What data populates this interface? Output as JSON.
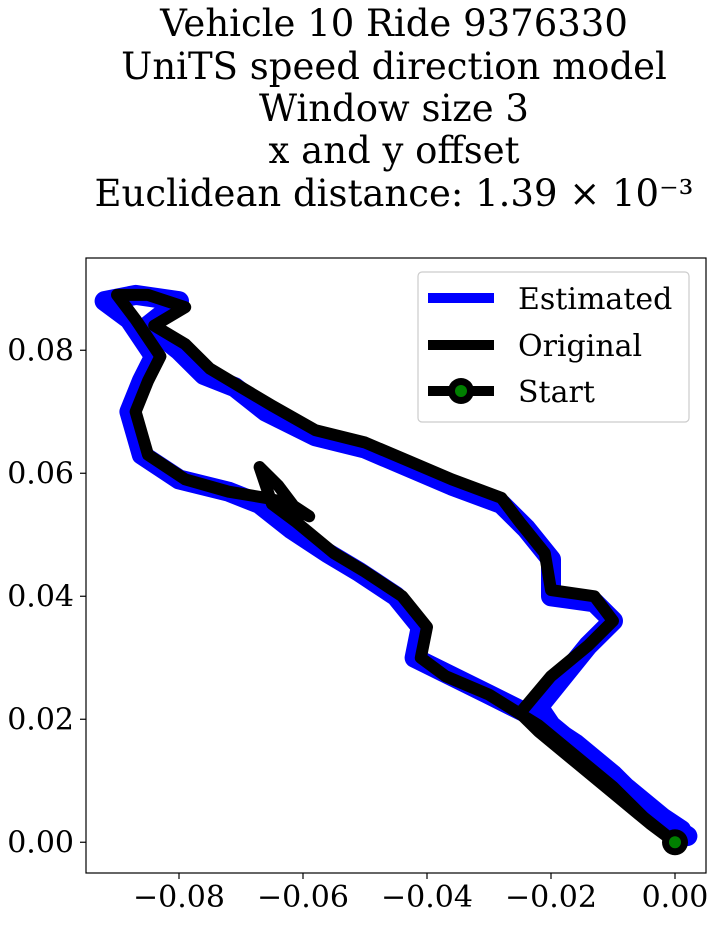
{
  "chart_data": {
    "type": "line",
    "title_lines": [
      "Vehicle 10 Ride 9376330",
      "UniTS speed direction model",
      "Window size 3",
      "x and y offset",
      "Euclidean distance: 1.39 × 10⁻³"
    ],
    "xlabel": "",
    "ylabel": "",
    "xlim": [
      -0.095,
      0.005
    ],
    "ylim": [
      -0.005,
      0.095
    ],
    "x_ticks": [
      -0.08,
      -0.06,
      -0.04,
      -0.02,
      0.0
    ],
    "x_tick_labels": [
      "−0.08",
      "−0.06",
      "−0.04",
      "−0.02",
      "0.00"
    ],
    "y_ticks": [
      0.0,
      0.02,
      0.04,
      0.06,
      0.08
    ],
    "y_tick_labels": [
      "0.00",
      "0.02",
      "0.04",
      "0.06",
      "0.08"
    ],
    "grid": false,
    "legend_position": "upper right",
    "series": [
      {
        "name": "Estimated",
        "color": "#0000ff",
        "points": [
          [
            0.002,
            0.001
          ],
          [
            -0.004,
            0.005
          ],
          [
            -0.01,
            0.011
          ],
          [
            -0.016,
            0.016
          ],
          [
            -0.022,
            0.02
          ],
          [
            -0.03,
            0.024
          ],
          [
            -0.036,
            0.027
          ],
          [
            -0.042,
            0.03
          ],
          [
            -0.041,
            0.035
          ],
          [
            -0.045,
            0.04
          ],
          [
            -0.051,
            0.044
          ],
          [
            -0.056,
            0.047
          ],
          [
            -0.062,
            0.051
          ],
          [
            -0.067,
            0.055
          ],
          [
            -0.072,
            0.057
          ],
          [
            -0.08,
            0.059
          ],
          [
            -0.086,
            0.063
          ],
          [
            -0.088,
            0.07
          ],
          [
            -0.086,
            0.075
          ],
          [
            -0.084,
            0.079
          ],
          [
            -0.088,
            0.085
          ],
          [
            -0.092,
            0.088
          ],
          [
            -0.087,
            0.089
          ],
          [
            -0.08,
            0.088
          ],
          [
            -0.085,
            0.084
          ],
          [
            -0.08,
            0.08
          ],
          [
            -0.076,
            0.076
          ],
          [
            -0.071,
            0.074
          ],
          [
            -0.066,
            0.07
          ],
          [
            -0.058,
            0.066
          ],
          [
            -0.05,
            0.064
          ],
          [
            -0.043,
            0.061
          ],
          [
            -0.036,
            0.058
          ],
          [
            -0.028,
            0.055
          ],
          [
            -0.024,
            0.051
          ],
          [
            -0.02,
            0.046
          ],
          [
            -0.02,
            0.04
          ],
          [
            -0.013,
            0.039
          ],
          [
            -0.01,
            0.036
          ],
          [
            -0.014,
            0.032
          ],
          [
            -0.018,
            0.027
          ],
          [
            -0.022,
            0.022
          ],
          [
            -0.02,
            0.019
          ],
          [
            -0.014,
            0.014
          ],
          [
            -0.008,
            0.009
          ],
          [
            -0.002,
            0.004
          ],
          [
            0.001,
            0.002
          ]
        ]
      },
      {
        "name": "Original",
        "color": "#000000",
        "points": [
          [
            0.0,
            0.0
          ],
          [
            -0.005,
            0.004
          ],
          [
            -0.01,
            0.009
          ],
          [
            -0.016,
            0.014
          ],
          [
            -0.022,
            0.019
          ],
          [
            -0.03,
            0.024
          ],
          [
            -0.037,
            0.027
          ],
          [
            -0.041,
            0.03
          ],
          [
            -0.04,
            0.035
          ],
          [
            -0.044,
            0.04
          ],
          [
            -0.05,
            0.044
          ],
          [
            -0.055,
            0.047
          ],
          [
            -0.061,
            0.052
          ],
          [
            -0.065,
            0.055
          ],
          [
            -0.067,
            0.061
          ],
          [
            -0.064,
            0.058
          ],
          [
            -0.061,
            0.054
          ],
          [
            -0.059,
            0.053
          ],
          [
            -0.062,
            0.055
          ],
          [
            -0.066,
            0.056
          ],
          [
            -0.072,
            0.057
          ],
          [
            -0.079,
            0.059
          ],
          [
            -0.085,
            0.063
          ],
          [
            -0.087,
            0.07
          ],
          [
            -0.085,
            0.075
          ],
          [
            -0.083,
            0.079
          ],
          [
            -0.087,
            0.085
          ],
          [
            -0.09,
            0.089
          ],
          [
            -0.085,
            0.089
          ],
          [
            -0.079,
            0.087
          ],
          [
            -0.084,
            0.084
          ],
          [
            -0.079,
            0.081
          ],
          [
            -0.075,
            0.077
          ],
          [
            -0.07,
            0.074
          ],
          [
            -0.065,
            0.071
          ],
          [
            -0.058,
            0.067
          ],
          [
            -0.05,
            0.065
          ],
          [
            -0.043,
            0.062
          ],
          [
            -0.036,
            0.059
          ],
          [
            -0.028,
            0.056
          ],
          [
            -0.025,
            0.052
          ],
          [
            -0.021,
            0.047
          ],
          [
            -0.02,
            0.041
          ],
          [
            -0.013,
            0.04
          ],
          [
            -0.01,
            0.036
          ],
          [
            -0.014,
            0.032
          ],
          [
            -0.02,
            0.027
          ],
          [
            -0.025,
            0.021
          ],
          [
            -0.022,
            0.018
          ],
          [
            -0.016,
            0.013
          ],
          [
            -0.01,
            0.008
          ],
          [
            -0.004,
            0.003
          ],
          [
            0.0,
            0.0
          ]
        ]
      }
    ],
    "start_point": {
      "name": "Start",
      "x": 0.0,
      "y": 0.0,
      "marker_color": "#008000",
      "edge_color": "#000000"
    }
  }
}
